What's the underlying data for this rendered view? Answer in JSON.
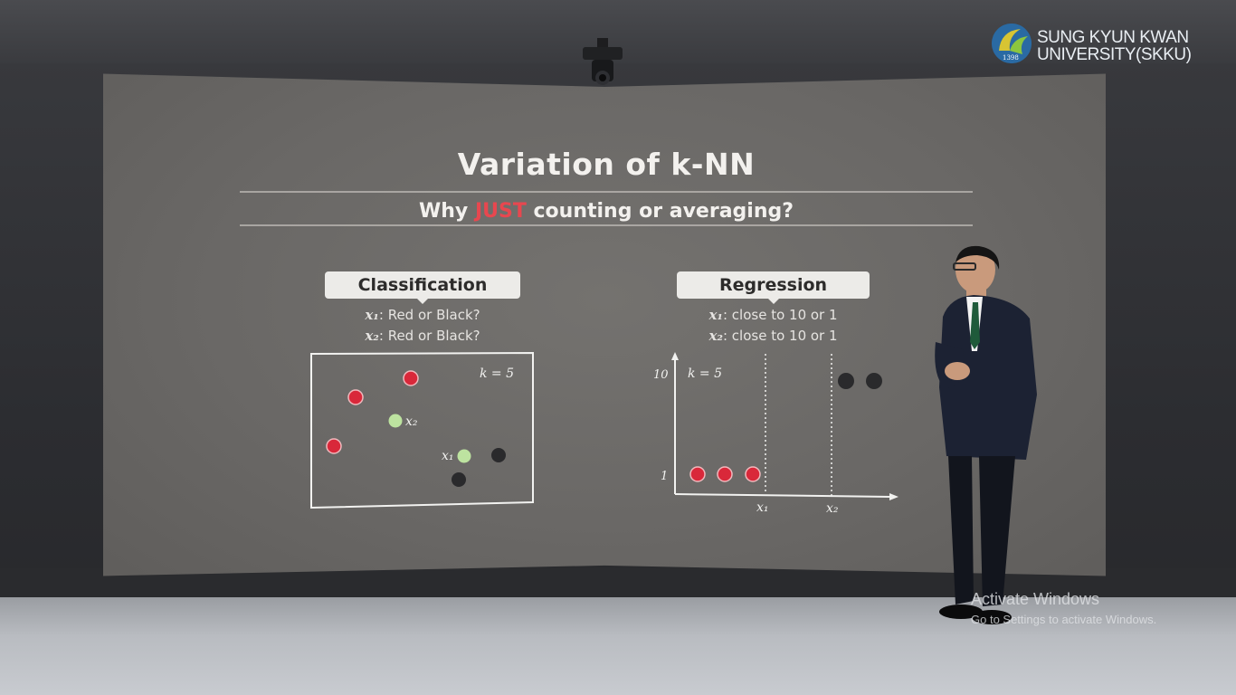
{
  "logo": {
    "line1": "SUNG KYUN KWAN",
    "line2": "UNIVERSITY(SKKU)",
    "year": "1398"
  },
  "slide": {
    "title": "Variation of k-NN",
    "subtitle_before": "Why ",
    "subtitle_emphasis": "JUST",
    "subtitle_after": " counting or averaging?",
    "classification": {
      "label": "Classification",
      "q1_var": "x₁",
      "q1_text": ": Red or Black?",
      "q2_var": "x₂",
      "q2_text": ": Red or Black?",
      "k_label": "k = 5",
      "point_x1_label": "x₁",
      "point_x2_label": "x₂"
    },
    "regression": {
      "label": "Regression",
      "q1_var": "x₁",
      "q1_text": ": close to 10 or 1",
      "q2_var": "x₂",
      "q2_text": ": close to 10 or 1",
      "k_label": "k = 5",
      "y_tick_top": "10",
      "y_tick_bottom": "1",
      "x_tick_1": "x₁",
      "x_tick_2": "x₂"
    }
  },
  "colors": {
    "red_point": "#d9283a",
    "black_point": "#2a2a2c",
    "query_point": "#bde3a0",
    "accent_red": "#e8474f"
  },
  "watermark": {
    "title": "Activate Windows",
    "subtitle": "Go to Settings to activate Windows."
  }
}
